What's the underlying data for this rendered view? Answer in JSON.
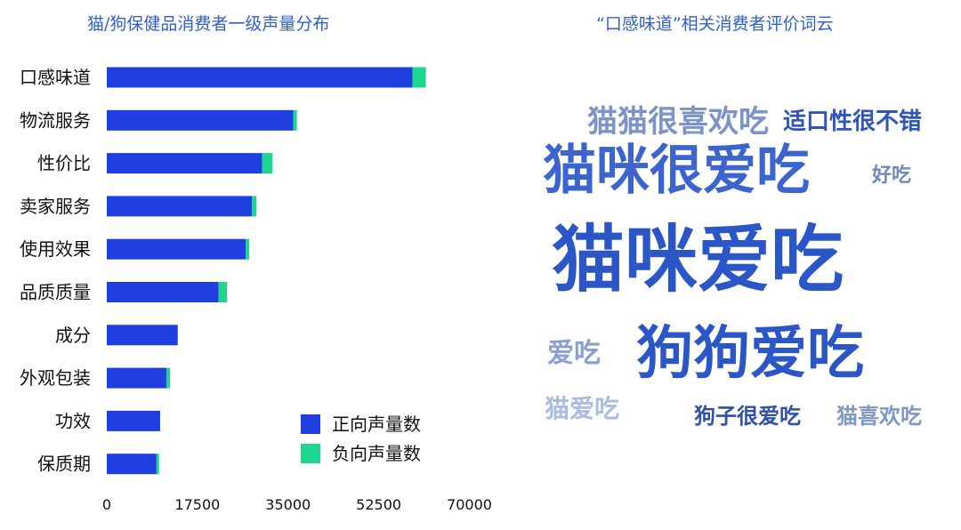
{
  "left_panel": {
    "title": "猫/狗保健品消费者一级声量分布"
  },
  "right_panel": {
    "title": "“口感味道”相关消费者评价词云"
  },
  "chart_data": [
    {
      "type": "bar",
      "orientation": "horizontal",
      "stacked": true,
      "title": "猫/狗保健品消费者一级声量分布",
      "categories": [
        "口感味道",
        "物流服务",
        "性价比",
        "卖家服务",
        "使用效果",
        "品质质量",
        "成分",
        "外观包装",
        "功效",
        "保质期"
      ],
      "series": [
        {
          "name": "正向声量数",
          "color": "#1f3fe0",
          "values": [
            59000,
            36000,
            30000,
            28000,
            26800,
            21600,
            13700,
            11500,
            10300,
            9600
          ]
        },
        {
          "name": "负向声量数",
          "color": "#1ed690",
          "values": [
            2600,
            700,
            2000,
            900,
            700,
            1600,
            0,
            700,
            0,
            500
          ]
        }
      ],
      "xlim": [
        0,
        70000
      ],
      "x_ticks": [
        "0",
        "17500",
        "35000",
        "52500",
        "70000"
      ],
      "legend_position": "bottom-right",
      "grid": false
    },
    {
      "type": "wordcloud",
      "title": "“口感味道”相关消费者评价词云",
      "words": [
        {
          "text": "猫咪爱吃",
          "weight": 100,
          "color": "#2b56c8"
        },
        {
          "text": "猫咪很爱吃",
          "weight": 70,
          "color": "#3b64cf"
        },
        {
          "text": "狗狗爱吃",
          "weight": 70,
          "color": "#2b56c8"
        },
        {
          "text": "猫猫很喜欢吃",
          "weight": 40,
          "color": "#7a93c8"
        },
        {
          "text": "适口性很不错",
          "weight": 32,
          "color": "#2f55b8"
        },
        {
          "text": "好吃",
          "weight": 26,
          "color": "#6f88c0"
        },
        {
          "text": "爱吃",
          "weight": 36,
          "color": "#8aa0d4"
        },
        {
          "text": "猫爱吃",
          "weight": 32,
          "color": "#a9bde2"
        },
        {
          "text": "狗子很爱吃",
          "weight": 28,
          "color": "#2f52a8"
        },
        {
          "text": "猫喜欢吃",
          "weight": 28,
          "color": "#7f97c6"
        }
      ]
    }
  ]
}
